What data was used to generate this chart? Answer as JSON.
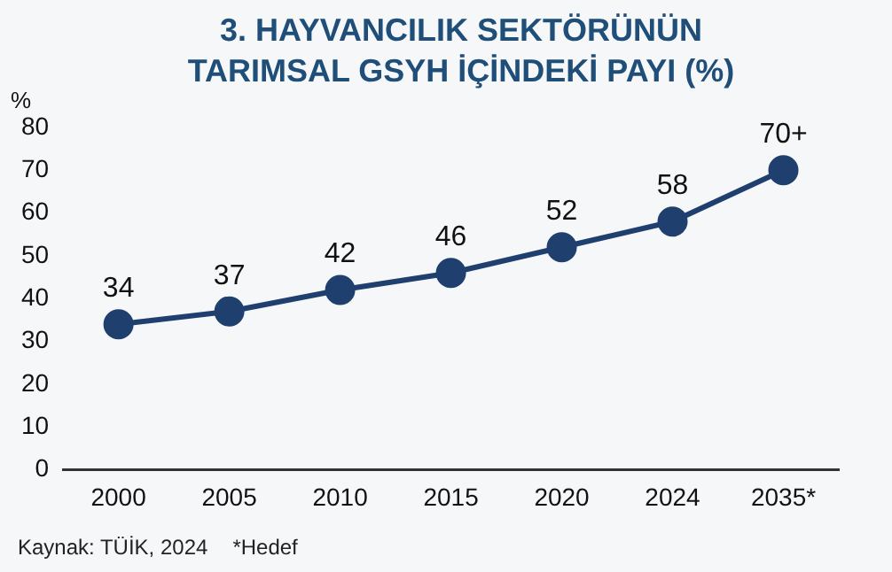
{
  "chart_data": {
    "type": "line",
    "title": "3. HAYVANCILIK SEKTÖRÜNÜN TARIMSAL GSYH İÇİNDEKİ PAYI (%)",
    "ylabel": "%",
    "categories": [
      "2000",
      "2005",
      "2010",
      "2015",
      "2020",
      "2024",
      "2035*"
    ],
    "series": [
      {
        "color": "#1f3f6e",
        "values": [
          34,
          37,
          42,
          46,
          52,
          58,
          70
        ],
        "value_labels": [
          "34",
          "37",
          "42",
          "46",
          "52",
          "58",
          "70+"
        ]
      }
    ],
    "ylim": [
      0,
      80
    ],
    "yticks": [
      0,
      10,
      20,
      30,
      40,
      50,
      60,
      70,
      80
    ],
    "grid": false,
    "legend": false,
    "marker": "circle",
    "line_style": "solid",
    "annotations": [
      "Kaynak: TÜİK, 2024",
      "*Hedef"
    ]
  }
}
